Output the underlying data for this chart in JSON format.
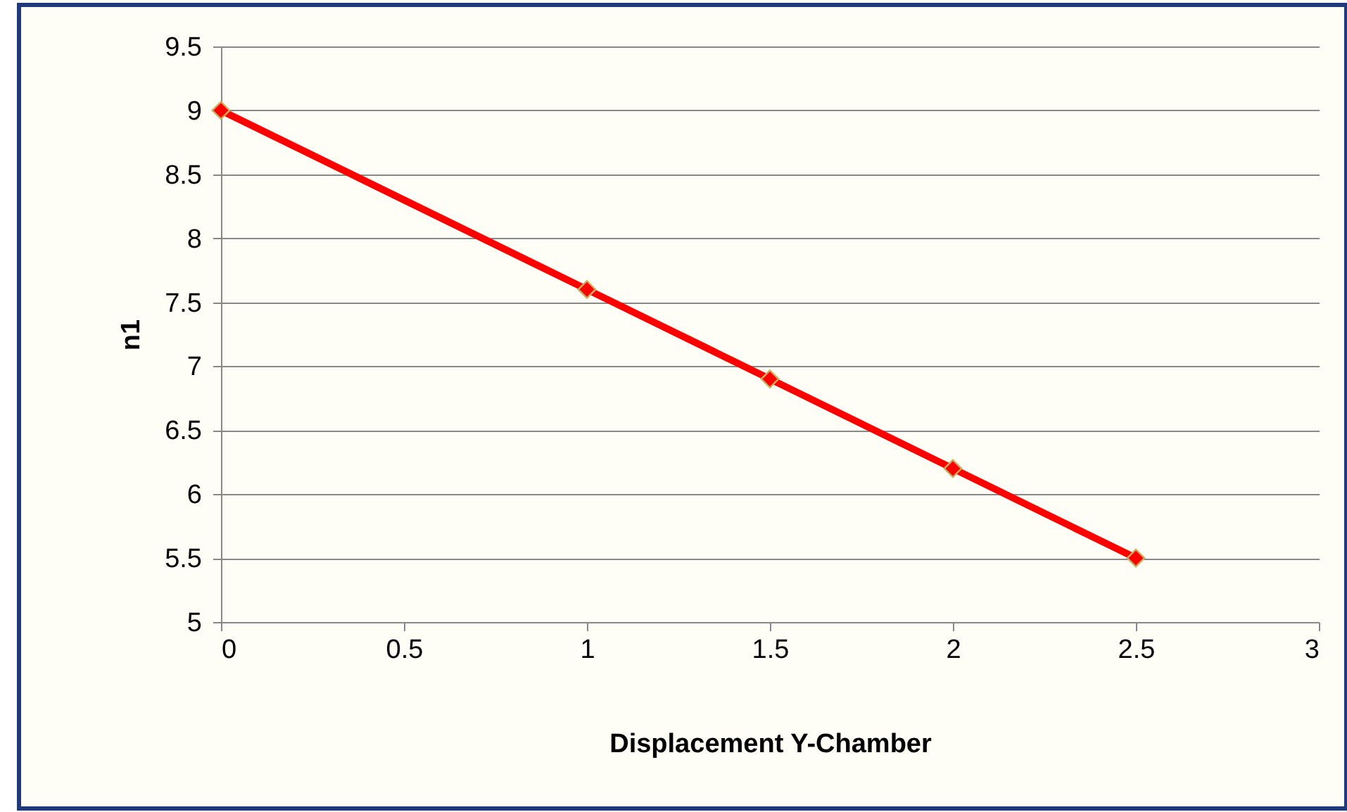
{
  "chart_data": {
    "type": "line",
    "xlabel": "Displacement Y-Chamber",
    "ylabel": "n1",
    "x": [
      0,
      1,
      1.5,
      2,
      2.5
    ],
    "series": [
      {
        "color": "#ff0000",
        "values": [
          9,
          7.6,
          6.9,
          6.2,
          5.5
        ]
      }
    ],
    "xlim": [
      0,
      3
    ],
    "xticks": [
      0,
      0.5,
      1,
      1.5,
      2,
      2.5,
      3
    ],
    "ylim": [
      5,
      9.5
    ],
    "yticks": [
      5,
      5.5,
      6,
      6.5,
      7,
      7.5,
      8,
      8.5,
      9,
      9.5
    ],
    "grid": "y",
    "marker": "diamond",
    "line_style": "solid"
  }
}
